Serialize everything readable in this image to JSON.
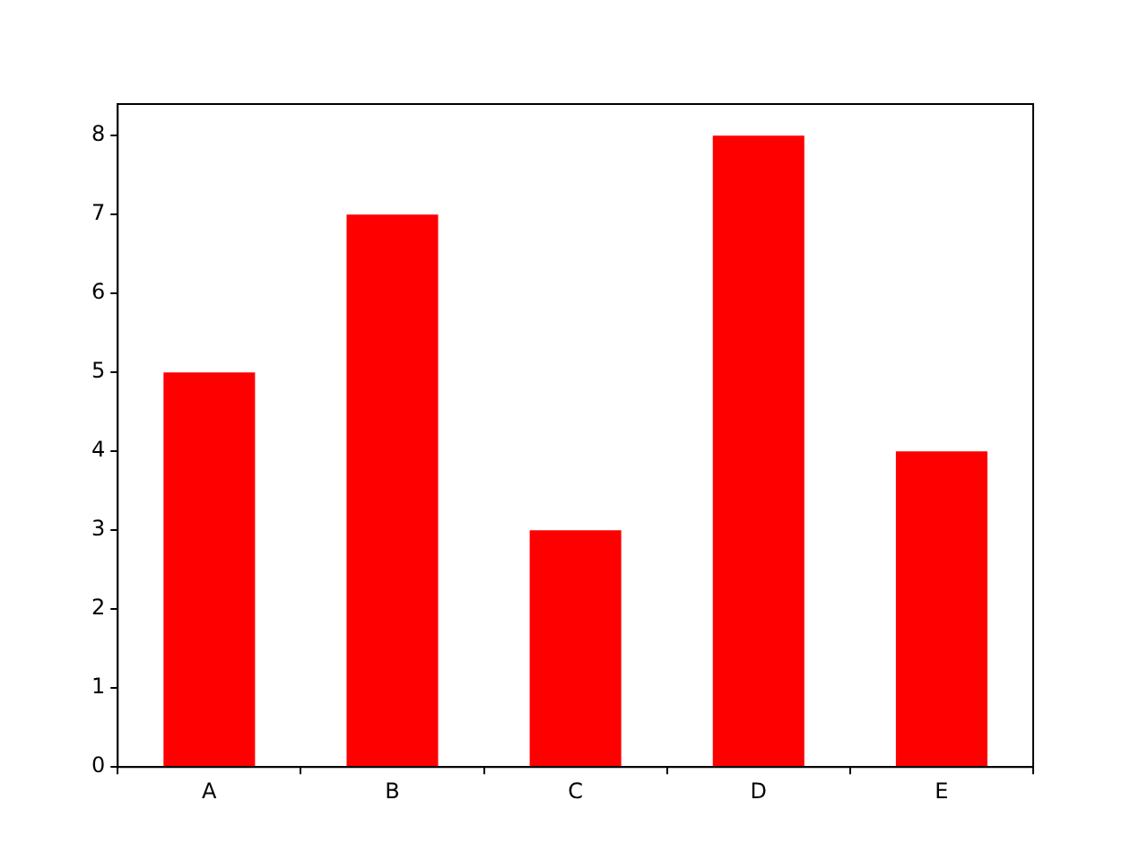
{
  "chart_data": {
    "type": "bar",
    "categories": [
      "A",
      "B",
      "C",
      "D",
      "E"
    ],
    "values": [
      5,
      7,
      3,
      8,
      4
    ],
    "color": "#ff0000",
    "ylim": [
      0,
      8.4
    ],
    "yticks": [
      0,
      1,
      2,
      3,
      4,
      5,
      6,
      7,
      8
    ],
    "grid": false,
    "legend": false
  }
}
